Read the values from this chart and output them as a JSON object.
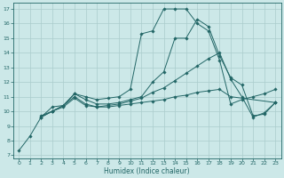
{
  "xlabel": "Humidex (Indice chaleur)",
  "bg_color": "#cce8e8",
  "grid_color": "#aacccc",
  "line_color": "#226666",
  "xlim": [
    -0.5,
    23.5
  ],
  "ylim": [
    6.8,
    17.4
  ],
  "xticks": [
    0,
    1,
    2,
    3,
    4,
    5,
    6,
    7,
    8,
    9,
    10,
    11,
    12,
    13,
    14,
    15,
    16,
    17,
    18,
    19,
    20,
    21,
    22,
    23
  ],
  "yticks": [
    7,
    8,
    9,
    10,
    11,
    12,
    13,
    14,
    15,
    16,
    17
  ],
  "line1_x": [
    0,
    1,
    2,
    3,
    4,
    5,
    6,
    7,
    8,
    9,
    10,
    11,
    12,
    13,
    14,
    15,
    16,
    17,
    18,
    19,
    20,
    21,
    22,
    23
  ],
  "line1_y": [
    7.3,
    8.3,
    9.6,
    10.3,
    10.4,
    11.2,
    11.0,
    10.8,
    10.9,
    11.0,
    11.5,
    15.3,
    15.5,
    17.0,
    17.0,
    17.0,
    16.0,
    15.5,
    13.5,
    10.5,
    10.8,
    11.0,
    11.2,
    11.5
  ],
  "line2_x": [
    2,
    3,
    4,
    5,
    6,
    7,
    8,
    9,
    10,
    11,
    12,
    13,
    14,
    15,
    16,
    17,
    18,
    19,
    20,
    21,
    22,
    23
  ],
  "line2_y": [
    9.7,
    10.0,
    10.4,
    11.2,
    10.8,
    10.5,
    10.5,
    10.6,
    10.8,
    11.0,
    12.0,
    12.7,
    15.0,
    15.0,
    16.3,
    15.8,
    13.8,
    12.3,
    11.8,
    9.7,
    9.8,
    10.6
  ],
  "line3_x": [
    2,
    3,
    4,
    5,
    6,
    7,
    8,
    9,
    10,
    11,
    12,
    13,
    14,
    15,
    16,
    17,
    18,
    19,
    20,
    21,
    22,
    23
  ],
  "line3_y": [
    9.6,
    10.0,
    10.4,
    11.0,
    10.5,
    10.3,
    10.4,
    10.5,
    10.7,
    10.9,
    11.3,
    11.6,
    12.1,
    12.6,
    13.1,
    13.6,
    14.0,
    12.2,
    11.0,
    9.6,
    9.9,
    10.6
  ],
  "line4_x": [
    2,
    3,
    4,
    5,
    6,
    7,
    8,
    9,
    10,
    11,
    12,
    13,
    14,
    15,
    16,
    17,
    18,
    19,
    23
  ],
  "line4_y": [
    9.6,
    10.0,
    10.3,
    10.9,
    10.4,
    10.3,
    10.3,
    10.4,
    10.5,
    10.6,
    10.7,
    10.8,
    11.0,
    11.1,
    11.3,
    11.4,
    11.5,
    11.0,
    10.6
  ]
}
